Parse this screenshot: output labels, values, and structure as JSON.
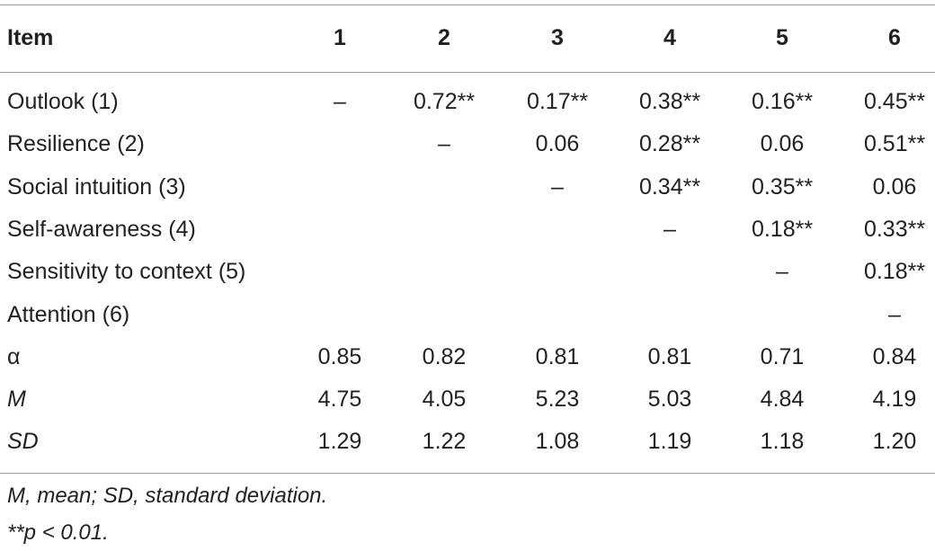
{
  "table": {
    "header": [
      "Item",
      "1",
      "2",
      "3",
      "4",
      "5",
      "6"
    ],
    "rows": [
      [
        "Outlook (1)",
        "–",
        "0.72**",
        "0.17**",
        "0.38**",
        "0.16**",
        "0.45**"
      ],
      [
        "Resilience (2)",
        null,
        "–",
        "0.06",
        "0.28**",
        "0.06",
        "0.51**"
      ],
      [
        "Social intuition (3)",
        null,
        null,
        "–",
        "0.34**",
        "0.35**",
        "0.06"
      ],
      [
        "Self-awareness (4)",
        null,
        null,
        null,
        "–",
        "0.18**",
        "0.33**"
      ],
      [
        "Sensitivity to context (5)",
        null,
        null,
        null,
        null,
        "–",
        "0.18**"
      ],
      [
        "Attention (6)",
        null,
        null,
        null,
        null,
        null,
        "–"
      ],
      [
        "α",
        "0.85",
        "0.82",
        "0.81",
        "0.81",
        "0.71",
        "0.84"
      ],
      [
        "M",
        "4.75",
        "4.05",
        "5.23",
        "5.03",
        "4.84",
        "4.19"
      ],
      [
        "SD",
        "1.29",
        "1.22",
        "1.08",
        "1.19",
        "1.18",
        "1.20"
      ]
    ]
  },
  "footnotes": [
    "M, mean; SD, standard deviation.",
    "**p < 0.01."
  ]
}
